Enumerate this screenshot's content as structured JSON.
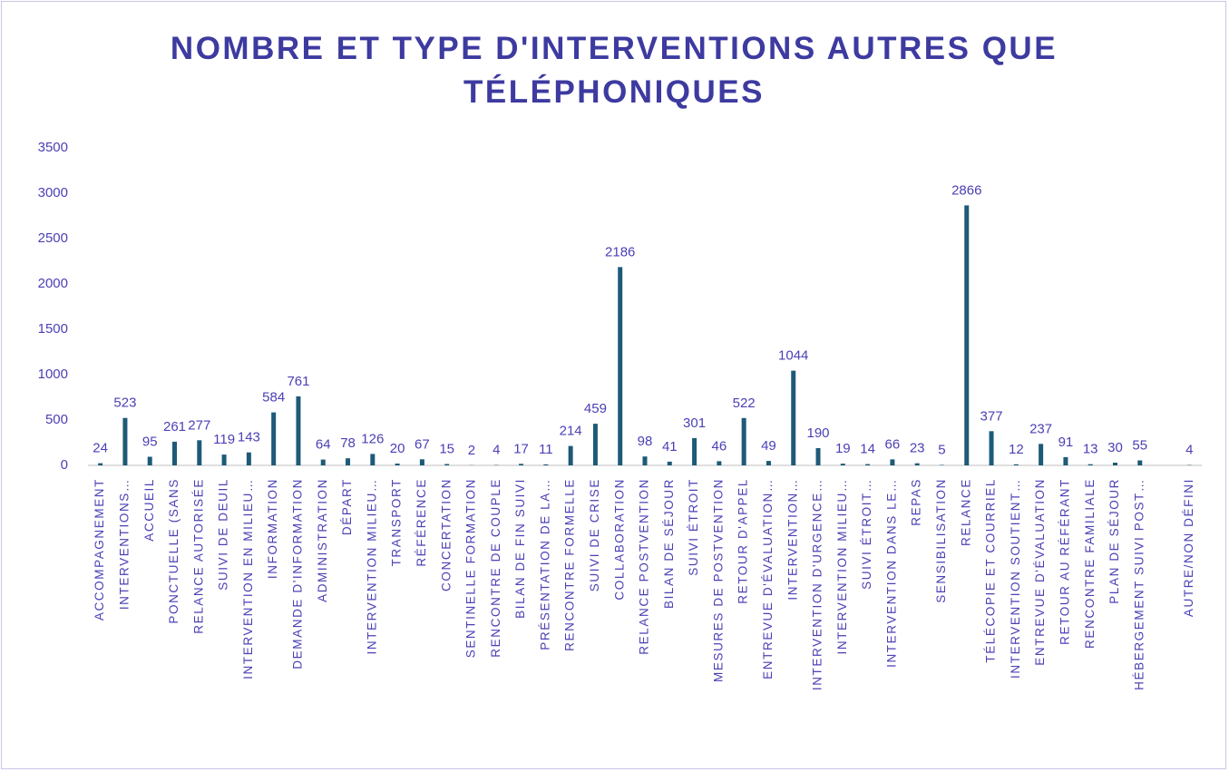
{
  "chart_data": {
    "type": "bar",
    "title": "NOMBRE ET TYPE D'INTERVENTIONS AUTRES QUE TÉLÉPHONIQUES",
    "categories": [
      "ACCOMPAGNEMENT",
      "INTERVENTIONS…",
      "ACCUEIL",
      "PONCTUELLE (SANS",
      "RELANCE AUTORISÉE",
      "SUIVI DE DEUIL",
      "INTERVENTION EN MILIEU…",
      "INFORMATION",
      "DEMANDE D'INFORMATION",
      "ADMINISTRATION",
      "DÉPART",
      "INTERVENTION MILIEU…",
      "TRANSPORT",
      "RÉFÉRENCE",
      "CONCERTATION",
      "SENTINELLE FORMATION",
      "RENCONTRE DE COUPLE",
      "BILAN DE FIN SUIVI",
      "PRÉSENTATION DE LA…",
      "RENCONTRE FORMELLE",
      "SUIVI DE CRISE",
      "COLLABORATION",
      "RELANCE POSTVENTION",
      "BILAN DE SÉJOUR",
      "SUIVI ÉTROIT",
      "MESURES DE POSTVENTION",
      "RETOUR D'APPEL",
      "ENTREVUE D'ÉVALUATION…",
      "INTERVENTION…",
      "INTERVENTION D'URGENCE…",
      "INTERVENTION MILIEU…",
      "SUIVI ÉTROIT…",
      "INTERVENTION DANS LE…",
      "REPAS",
      "SENSIBILISATION",
      "RELANCE",
      "TÉLÉCOPIE ET COURRIEL",
      "INTERVENTION SOUTIENT…",
      "ENTREVUE D'ÉVALUATION",
      "RETOUR AU RÉFÉRANT",
      "RENCONTRE FAMILIALE",
      "PLAN DE SÉJOUR",
      "HÉBERGEMENT SUIVI POST…",
      null,
      "AUTRE/NON DÉFINI"
    ],
    "values": [
      24,
      523,
      95,
      261,
      277,
      119,
      143,
      584,
      761,
      64,
      78,
      126,
      20,
      67,
      15,
      2,
      4,
      17,
      11,
      214,
      459,
      2186,
      98,
      41,
      301,
      46,
      522,
      49,
      1044,
      190,
      19,
      14,
      66,
      23,
      5,
      2866,
      377,
      12,
      237,
      91,
      13,
      30,
      55,
      null,
      4
    ],
    "color": "#1d5a78",
    "ylim": [
      0,
      3500
    ],
    "yticks": [
      0,
      500,
      1000,
      1500,
      2000,
      2500,
      3000,
      3500
    ],
    "grid": false
  }
}
